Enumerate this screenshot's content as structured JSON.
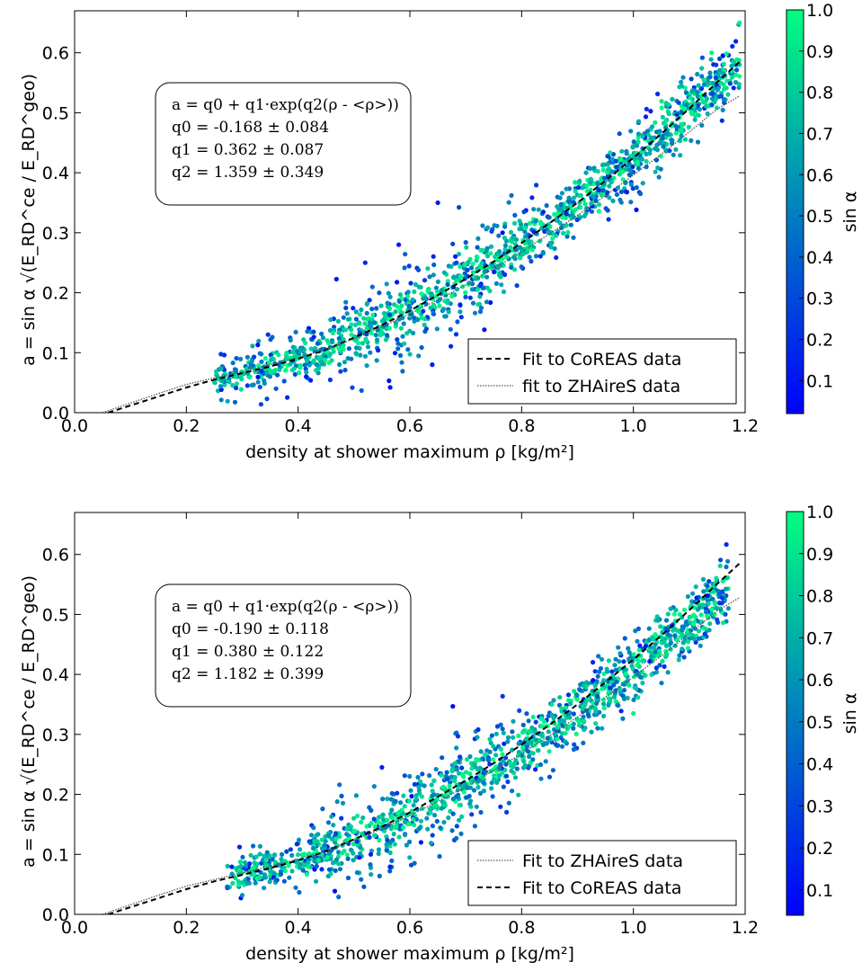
{
  "chart_data": [
    {
      "type": "scatter",
      "xlabel": "density at shower maximum ρ [kg/m²]",
      "ylabel": "a = sin α √(E_RD^ce / E_RD^geo)",
      "xlim": [
        0.0,
        1.2
      ],
      "ylim": [
        0.0,
        0.67
      ],
      "xticks": [
        "0.0",
        "0.2",
        "0.4",
        "0.6",
        "0.8",
        "1.0",
        "1.2"
      ],
      "yticks": [
        "0.0",
        "0.1",
        "0.2",
        "0.3",
        "0.4",
        "0.5",
        "0.6"
      ],
      "colorbar": {
        "label": "sin α",
        "range": [
          0.02,
          1.0
        ],
        "ticks": [
          "0.1",
          "0.2",
          "0.3",
          "0.4",
          "0.5",
          "0.6",
          "0.7",
          "0.8",
          "0.9",
          "1.0"
        ],
        "colormap_low": "#0000ff",
        "colormap_high": "#00ff80"
      },
      "annotation": [
        "a = q0 + q1·exp(q2(ρ - <ρ>))",
        "q0 = -0.168 ± 0.084",
        "q1 = 0.362 ± 0.087",
        "q2 = 1.359 ± 0.349"
      ],
      "legend_position": "bottom-right",
      "legend": [
        {
          "label": "Fit to CoREAS data",
          "style": "dashed"
        },
        {
          "label": "fit to ZHAireS data",
          "style": "dotted"
        }
      ],
      "series": [
        {
          "name": "Fit to CoREAS data",
          "style": "dashed",
          "x": [
            0.06,
            0.1,
            0.15,
            0.2,
            0.25,
            0.3,
            0.35,
            0.4,
            0.45,
            0.5,
            0.55,
            0.6,
            0.65,
            0.7,
            0.75,
            0.8,
            0.85,
            0.9,
            0.95,
            1.0,
            1.05,
            1.1,
            1.15,
            1.19
          ],
          "y": [
            0.0,
            0.012,
            0.027,
            0.042,
            0.055,
            0.066,
            0.077,
            0.09,
            0.105,
            0.125,
            0.146,
            0.17,
            0.196,
            0.223,
            0.252,
            0.283,
            0.316,
            0.35,
            0.387,
            0.425,
            0.465,
            0.507,
            0.551,
            0.585
          ]
        },
        {
          "name": "fit to ZHAireS data",
          "style": "dotted",
          "x": [
            0.05,
            0.1,
            0.15,
            0.2,
            0.25,
            0.3,
            0.35,
            0.4,
            0.45,
            0.5,
            0.55,
            0.6,
            0.65,
            0.7,
            0.75,
            0.8,
            0.85,
            0.9,
            0.95,
            1.0,
            1.05,
            1.1,
            1.15,
            1.19
          ],
          "y": [
            0.0,
            0.016,
            0.032,
            0.047,
            0.058,
            0.069,
            0.08,
            0.092,
            0.106,
            0.123,
            0.143,
            0.165,
            0.188,
            0.213,
            0.24,
            0.268,
            0.298,
            0.329,
            0.362,
            0.396,
            0.431,
            0.468,
            0.506,
            0.528
          ]
        }
      ],
      "scatter": {
        "x_range": [
          0.25,
          1.19
        ],
        "color_by": "sin α",
        "outliers": [
          {
            "x": 0.65,
            "y": 0.35,
            "c": 0.1
          },
          {
            "x": 0.64,
            "y": 0.08,
            "c": 0.1
          },
          {
            "x": 0.58,
            "y": 0.28,
            "c": 0.1
          },
          {
            "x": 0.69,
            "y": 0.18,
            "c": 0.1
          },
          {
            "x": 0.52,
            "y": 0.25,
            "c": 0.15
          },
          {
            "x": 0.71,
            "y": 0.095,
            "c": 0.1
          },
          {
            "x": 1.14,
            "y": 0.6,
            "c": 0.95
          },
          {
            "x": 1.19,
            "y": 0.65,
            "c": 0.95
          }
        ]
      }
    },
    {
      "type": "scatter",
      "xlabel": "density at shower maximum ρ [kg/m²]",
      "ylabel": "a = sin α √(E_RD^ce / E_RD^geo)",
      "xlim": [
        0.0,
        1.2
      ],
      "ylim": [
        0.0,
        0.67
      ],
      "xticks": [
        "0.0",
        "0.2",
        "0.4",
        "0.6",
        "0.8",
        "1.0",
        "1.2"
      ],
      "yticks": [
        "0.0",
        "0.1",
        "0.2",
        "0.3",
        "0.4",
        "0.5",
        "0.6"
      ],
      "colorbar": {
        "label": "sin α",
        "range": [
          0.04,
          1.0
        ],
        "ticks": [
          "0.1",
          "0.2",
          "0.3",
          "0.4",
          "0.5",
          "0.6",
          "0.7",
          "0.8",
          "0.9",
          "1.0"
        ],
        "colormap_low": "#0000ff",
        "colormap_high": "#00ff80"
      },
      "annotation": [
        "a = q0 + q1·exp(q2(ρ - <ρ>))",
        "q0 = -0.190 ± 0.118",
        "q1 = 0.380 ± 0.122",
        "q2 = 1.182 ± 0.399"
      ],
      "legend_position": "bottom-right",
      "legend": [
        {
          "label": "Fit to ZHAireS data",
          "style": "dotted"
        },
        {
          "label": "Fit to CoREAS data",
          "style": "dashed"
        }
      ],
      "series": [
        {
          "name": "Fit to CoREAS data",
          "style": "dashed",
          "x": [
            0.06,
            0.1,
            0.15,
            0.2,
            0.25,
            0.3,
            0.35,
            0.4,
            0.45,
            0.5,
            0.55,
            0.6,
            0.65,
            0.7,
            0.75,
            0.8,
            0.85,
            0.9,
            0.95,
            1.0,
            1.05,
            1.1,
            1.15,
            1.19
          ],
          "y": [
            0.0,
            0.012,
            0.027,
            0.042,
            0.055,
            0.066,
            0.077,
            0.09,
            0.105,
            0.125,
            0.146,
            0.17,
            0.196,
            0.223,
            0.252,
            0.283,
            0.316,
            0.35,
            0.387,
            0.425,
            0.465,
            0.507,
            0.551,
            0.585
          ]
        },
        {
          "name": "Fit to ZHAireS data",
          "style": "dotted",
          "x": [
            0.05,
            0.1,
            0.15,
            0.2,
            0.25,
            0.3,
            0.35,
            0.4,
            0.45,
            0.5,
            0.55,
            0.6,
            0.65,
            0.7,
            0.75,
            0.8,
            0.85,
            0.9,
            0.95,
            1.0,
            1.05,
            1.1,
            1.15,
            1.19
          ],
          "y": [
            0.0,
            0.016,
            0.032,
            0.047,
            0.058,
            0.069,
            0.08,
            0.092,
            0.106,
            0.123,
            0.143,
            0.165,
            0.188,
            0.213,
            0.24,
            0.268,
            0.298,
            0.329,
            0.362,
            0.396,
            0.431,
            0.468,
            0.506,
            0.528
          ]
        }
      ],
      "scatter": {
        "x_range": [
          0.27,
          1.17
        ],
        "color_by": "sin α",
        "outliers": [
          {
            "x": 0.55,
            "y": 0.245,
            "c": 0.1
          },
          {
            "x": 0.62,
            "y": 0.12,
            "c": 0.1
          },
          {
            "x": 0.53,
            "y": 0.1,
            "c": 0.1
          },
          {
            "x": 1.17,
            "y": 0.51,
            "c": 0.6
          },
          {
            "x": 1.0,
            "y": 0.335,
            "c": 0.95
          }
        ]
      }
    }
  ]
}
